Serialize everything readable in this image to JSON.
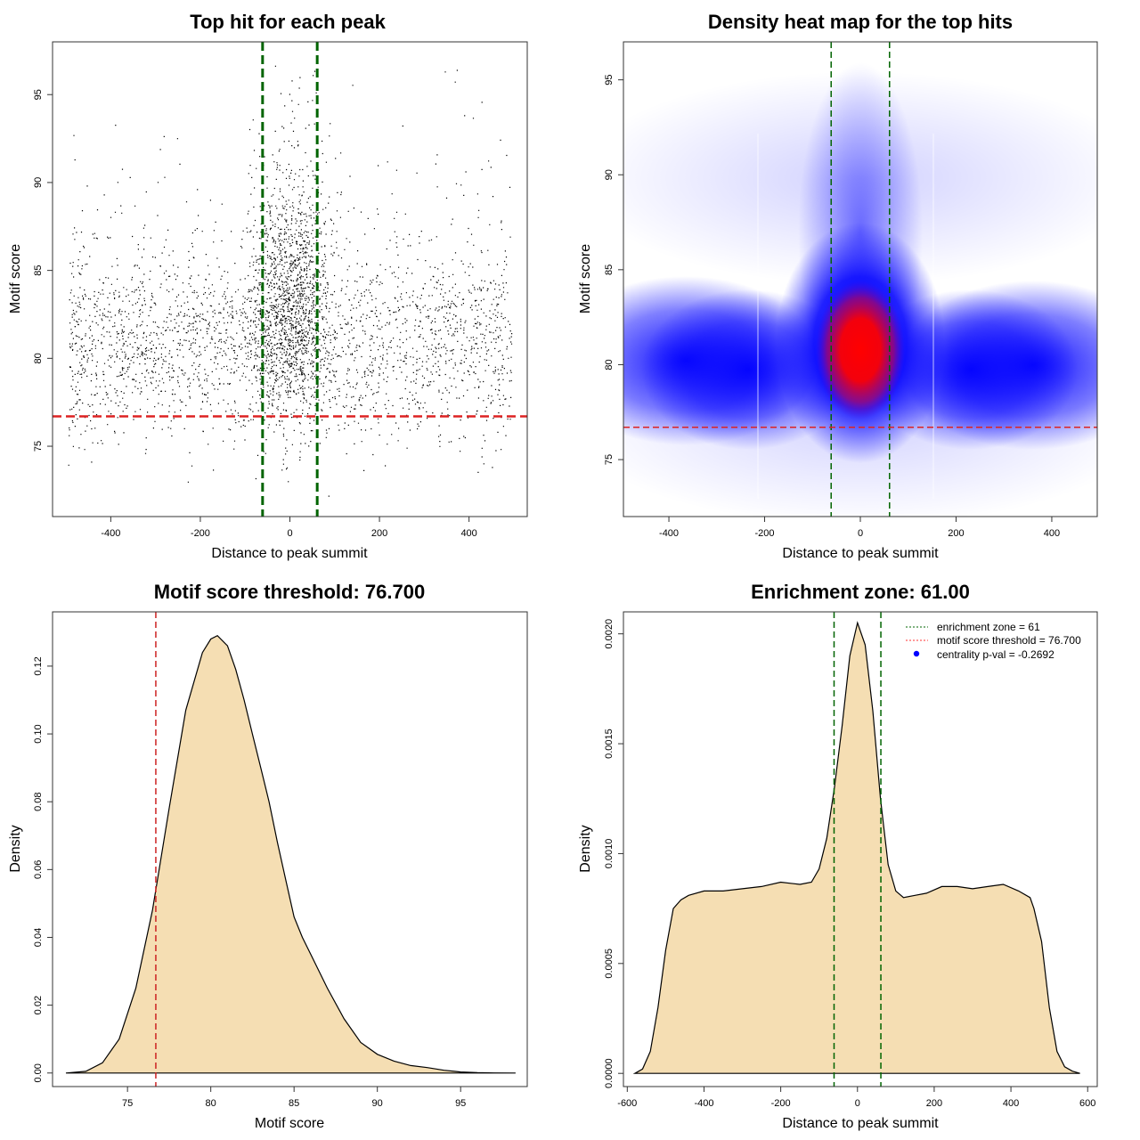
{
  "charts": [
    {
      "title": "Top hit for each peak",
      "xlabel": "Distance to peak summit",
      "ylabel": "Motif score"
    },
    {
      "title": "Density heat map for the top hits",
      "xlabel": "Distance to peak summit",
      "ylabel": "Motif score"
    },
    {
      "title": "Motif score threshold: 76.700",
      "xlabel": "Motif score",
      "ylabel": "Density"
    },
    {
      "title": "Enrichment zone: 61.00",
      "xlabel": "Distance to peak summit",
      "ylabel": "Density",
      "legend": [
        "enrichment zone = 61",
        "motif score threshold = 76.700",
        "centrality p-val = -0.2692"
      ]
    }
  ],
  "colors": {
    "green_line": "#006400",
    "red_line": "#cc2222",
    "fill_wheat": "#f5deb3",
    "heat_high": "#ff0000",
    "heat_mid": "#0000ff",
    "points": "#000000",
    "legend_dot": "#0000ff"
  },
  "chart_data": [
    {
      "type": "scatter",
      "title": "Top hit for each peak",
      "xlabel": "Distance to peak summit",
      "ylabel": "Motif score",
      "xlim": [
        -530,
        530
      ],
      "ylim": [
        71,
        98
      ],
      "xticks": [
        -400,
        -200,
        0,
        200,
        400
      ],
      "yticks": [
        75,
        80,
        85,
        90,
        95
      ],
      "vlines": [
        -61,
        61
      ],
      "hline": 76.7,
      "points_summary": "dense point cloud spanning x -500..500, y ~72..97, concentrated near x=0 and y~78-84"
    },
    {
      "type": "heatmap",
      "title": "Density heat map for the top hits",
      "xlabel": "Distance to peak summit",
      "ylabel": "Motif score",
      "xlim": [
        -495,
        495
      ],
      "ylim": [
        72,
        97
      ],
      "xticks": [
        -400,
        -200,
        0,
        200,
        400
      ],
      "yticks": [
        75,
        80,
        85,
        90,
        95
      ],
      "vlines": [
        -61,
        61
      ],
      "hline": 76.7,
      "peak": {
        "x": 5,
        "y": 81
      }
    },
    {
      "type": "area",
      "title": "Motif score threshold: 76.700",
      "xlabel": "Motif score",
      "ylabel": "Density",
      "xlim": [
        70.5,
        99
      ],
      "ylim": [
        -0.004,
        0.136
      ],
      "xticks": [
        75,
        80,
        85,
        90,
        95
      ],
      "yticks": [
        0.0,
        0.02,
        0.04,
        0.06,
        0.08,
        0.1,
        0.12
      ],
      "vline": 76.7,
      "x": [
        71.3,
        72.5,
        73.5,
        74.5,
        75.5,
        76.5,
        77.5,
        78.5,
        79.5,
        80.0,
        80.4,
        81.0,
        81.5,
        82.0,
        82.5,
        83.0,
        83.5,
        84.0,
        84.5,
        85.0,
        85.5,
        86.0,
        87.0,
        88.0,
        89.0,
        90.0,
        91.0,
        92.0,
        93.0,
        94.0,
        95.0,
        96.0,
        97.0,
        98.3
      ],
      "y": [
        0.0,
        0.0005,
        0.003,
        0.01,
        0.025,
        0.048,
        0.078,
        0.107,
        0.124,
        0.128,
        0.129,
        0.126,
        0.119,
        0.11,
        0.1,
        0.09,
        0.08,
        0.068,
        0.057,
        0.046,
        0.04,
        0.035,
        0.025,
        0.016,
        0.009,
        0.0055,
        0.0035,
        0.0022,
        0.0016,
        0.0008,
        0.0003,
        0.0001,
        3e-05,
        0.0
      ]
    },
    {
      "type": "area",
      "title": "Enrichment zone: 61.00",
      "xlabel": "Distance to peak summit",
      "ylabel": "Density",
      "xlim": [
        -610,
        625
      ],
      "ylim": [
        -6e-05,
        0.0021
      ],
      "xticks": [
        -600,
        -400,
        -200,
        0,
        200,
        400,
        600
      ],
      "yticks": [
        0.0,
        0.0005,
        0.001,
        0.0015,
        0.002
      ],
      "vlines": [
        -61,
        61
      ],
      "legend_position": "top-right",
      "x": [
        -580,
        -560,
        -540,
        -520,
        -500,
        -480,
        -460,
        -440,
        -400,
        -350,
        -300,
        -250,
        -200,
        -150,
        -120,
        -100,
        -80,
        -60,
        -40,
        -20,
        0,
        20,
        40,
        60,
        80,
        100,
        120,
        150,
        180,
        220,
        260,
        300,
        340,
        380,
        420,
        450,
        460,
        480,
        500,
        520,
        540,
        560,
        580
      ],
      "y": [
        0.0,
        2e-05,
        0.0001,
        0.0003,
        0.00056,
        0.00075,
        0.00079,
        0.00081,
        0.00083,
        0.00083,
        0.00084,
        0.00085,
        0.00087,
        0.00086,
        0.00087,
        0.00093,
        0.00107,
        0.0013,
        0.00158,
        0.0019,
        0.00205,
        0.00195,
        0.00165,
        0.00125,
        0.00095,
        0.00083,
        0.0008,
        0.00081,
        0.00082,
        0.00085,
        0.00085,
        0.00084,
        0.00085,
        0.00086,
        0.00083,
        0.0008,
        0.00075,
        0.0006,
        0.0003,
        0.0001,
        3e-05,
        1e-05,
        0.0
      ]
    }
  ]
}
